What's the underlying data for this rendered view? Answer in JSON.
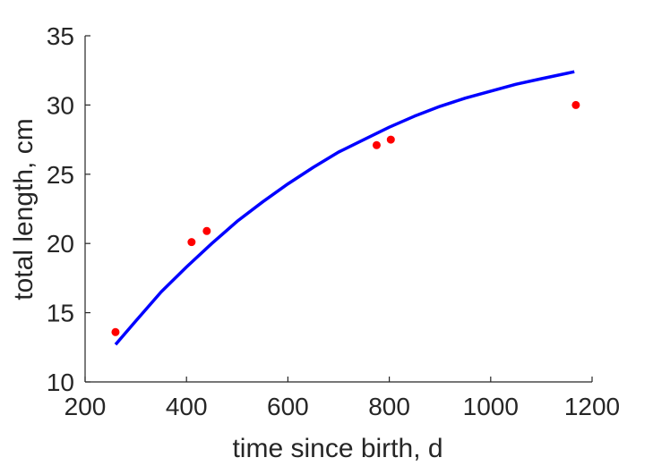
{
  "chart_data": {
    "type": "scatter",
    "title": "",
    "xlabel": "time since birth, d",
    "ylabel": "total length, cm",
    "xlim": [
      200,
      1200
    ],
    "ylim": [
      10,
      35
    ],
    "xticks": [
      200,
      400,
      600,
      800,
      1000,
      1200
    ],
    "yticks": [
      10,
      15,
      20,
      25,
      30,
      35
    ],
    "xtick_labels": [
      "200",
      "400",
      "600",
      "800",
      "1000",
      "1200"
    ],
    "ytick_labels": [
      "10",
      "15",
      "20",
      "25",
      "30",
      "35"
    ],
    "grid": false,
    "series": [
      {
        "kind": "scatter",
        "color": "#ff0000",
        "x": [
          260,
          410,
          440,
          775,
          803,
          1168
        ],
        "y": [
          13.6,
          20.1,
          20.9,
          27.1,
          27.5,
          30.0
        ]
      },
      {
        "kind": "line",
        "color": "#0000ff",
        "x": [
          260,
          300,
          350,
          400,
          450,
          500,
          550,
          600,
          650,
          700,
          750,
          800,
          850,
          900,
          950,
          1000,
          1050,
          1100,
          1165
        ],
        "y": [
          12.7,
          14.4,
          16.5,
          18.3,
          20.0,
          21.6,
          23.0,
          24.3,
          25.5,
          26.6,
          27.5,
          28.4,
          29.2,
          29.9,
          30.5,
          31.0,
          31.5,
          31.9,
          32.4
        ]
      }
    ]
  }
}
